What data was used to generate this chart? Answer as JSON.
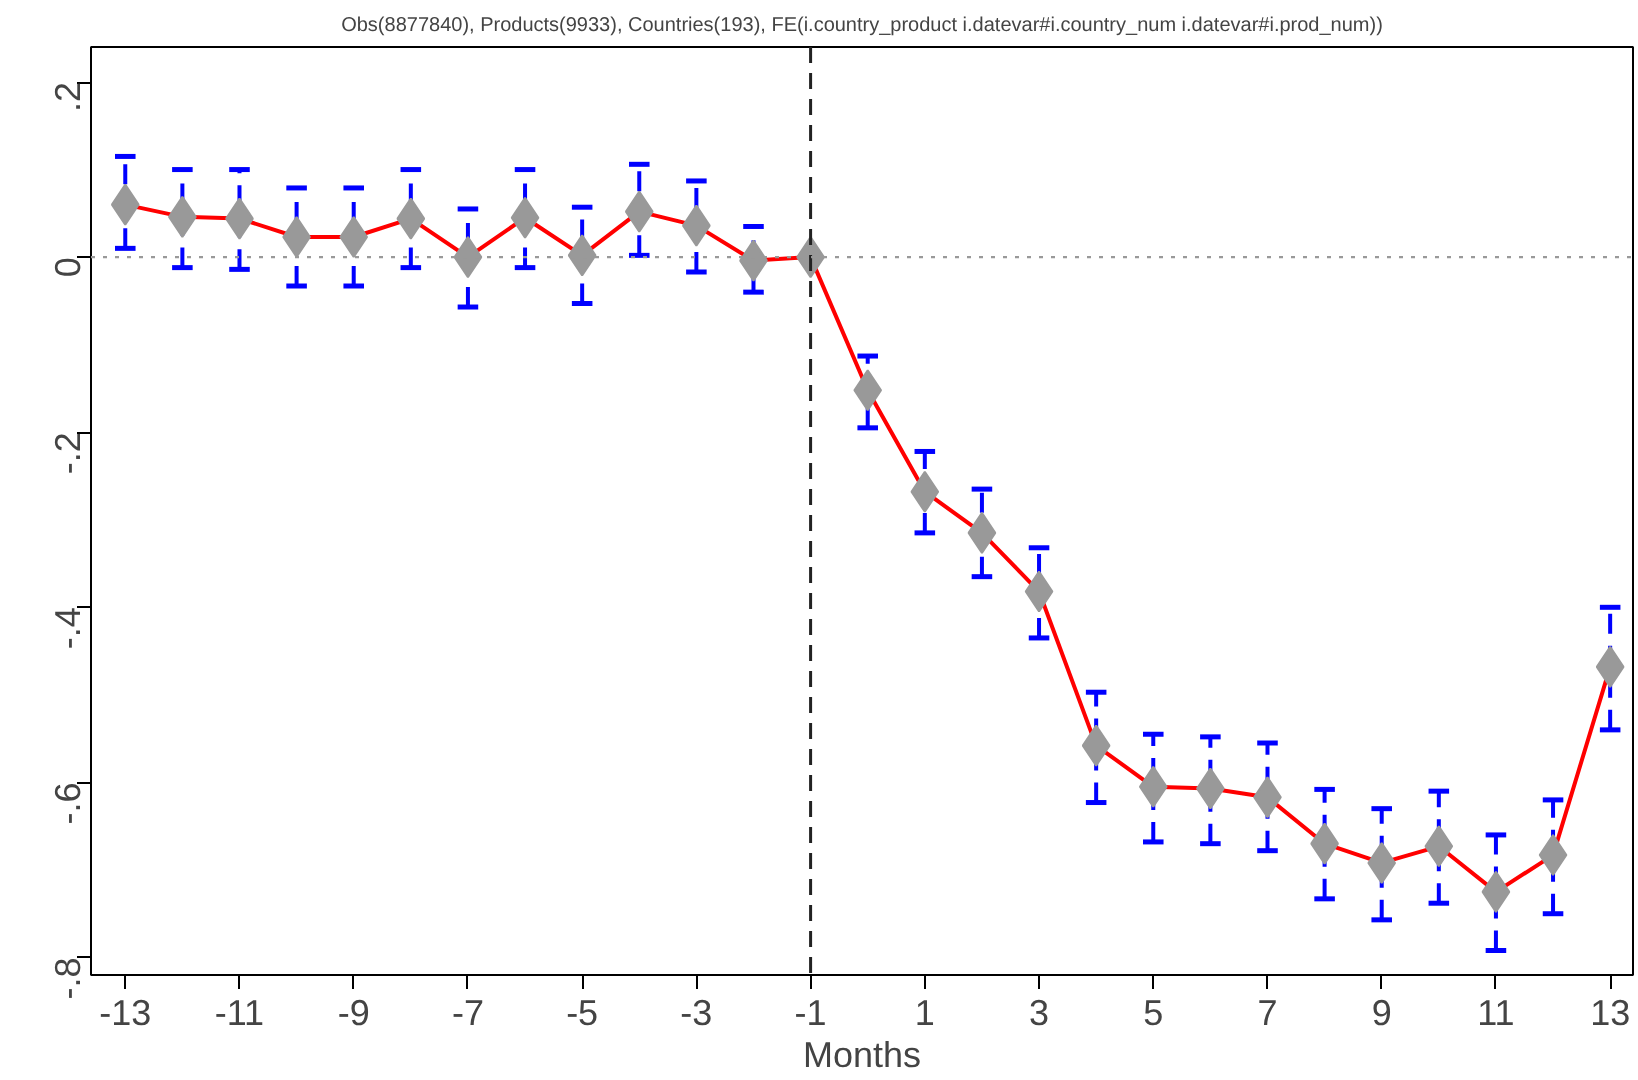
{
  "chart_data": {
    "type": "line",
    "title": "Obs(8877840), Products(9933), Countries(193), FE(i.country_product i.datevar#i.country_num i.datevar#i.prod_num))",
    "xlabel": "Months",
    "x": [
      -13,
      -12,
      -11,
      -10,
      -9,
      -8,
      -7,
      -6,
      -5,
      -4,
      -3,
      -2,
      -1,
      0,
      1,
      2,
      3,
      4,
      5,
      6,
      7,
      8,
      9,
      10,
      11,
      12,
      13
    ],
    "series": [
      {
        "color": "#ff0000",
        "values": [
          0.06,
          0.046,
          0.044,
          0.023,
          0.023,
          0.044,
          0.0,
          0.045,
          0.002,
          0.052,
          0.036,
          -0.004,
          0,
          -0.152,
          -0.268,
          -0.315,
          -0.382,
          -0.558,
          -0.605,
          -0.607,
          -0.617,
          -0.67,
          -0.692,
          -0.673,
          -0.725,
          -0.683,
          -0.468
        ],
        "errors": [
          [
            0.01,
            0.115
          ],
          [
            -0.012,
            0.1
          ],
          [
            -0.014,
            0.1
          ],
          [
            -0.033,
            0.079
          ],
          [
            -0.033,
            0.079
          ],
          [
            -0.012,
            0.1
          ],
          [
            -0.057,
            0.055
          ],
          [
            -0.012,
            0.1
          ],
          [
            -0.053,
            0.057
          ],
          [
            0.002,
            0.106
          ],
          [
            -0.017,
            0.087
          ],
          [
            -0.04,
            0.035
          ],
          null,
          [
            -0.195,
            -0.113
          ],
          [
            -0.315,
            -0.222
          ],
          [
            -0.365,
            -0.265
          ],
          [
            -0.435,
            -0.332
          ],
          [
            -0.623,
            -0.497
          ],
          [
            -0.668,
            -0.545
          ],
          [
            -0.67,
            -0.548
          ],
          [
            -0.678,
            -0.555
          ],
          [
            -0.733,
            -0.608
          ],
          [
            -0.757,
            -0.63
          ],
          [
            -0.738,
            -0.61
          ],
          [
            -0.792,
            -0.66
          ],
          [
            -0.75,
            -0.62
          ],
          [
            -0.54,
            -0.4
          ]
        ]
      }
    ],
    "xlim": [
      -13.6,
      13.4
    ],
    "ylim": [
      -0.82,
      0.24
    ],
    "xticks": [
      -13,
      -11,
      -9,
      -7,
      -5,
      -3,
      -1,
      1,
      3,
      5,
      7,
      9,
      11,
      13
    ],
    "yticks": [
      {
        "value": 0.2,
        "label": ".2"
      },
      0,
      {
        "value": -0.2,
        "label": "-.2"
      },
      {
        "value": -0.4,
        "label": "-.4"
      },
      {
        "value": -0.6,
        "label": "-.6"
      },
      {
        "value": -0.8,
        "label": "-.8"
      }
    ],
    "ref_lines": [
      {
        "axis": "x",
        "value": -1,
        "line_style": "dashed",
        "color": "#222222"
      },
      {
        "axis": "y",
        "value": 0,
        "line_style": "dotted",
        "color": "#999999"
      }
    ],
    "marker": "diamond",
    "line_style": "solid",
    "grid": false
  }
}
